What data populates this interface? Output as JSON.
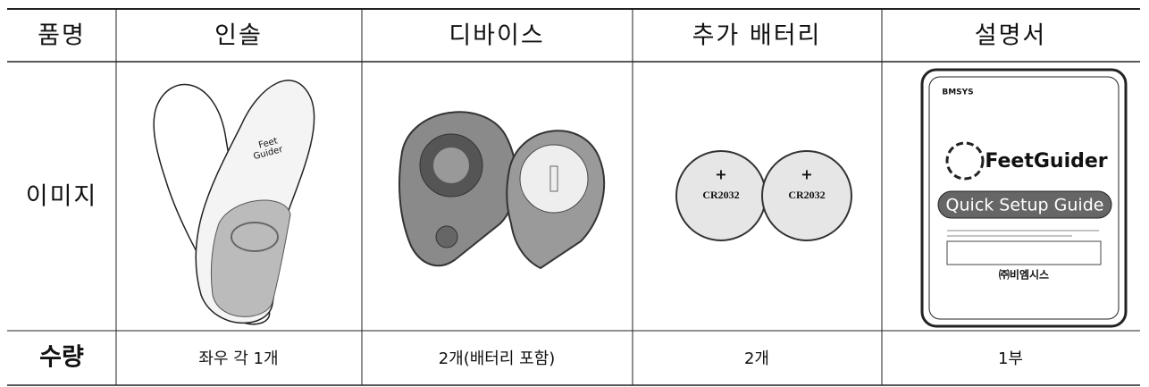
{
  "table": {
    "header": [
      "품명",
      "인솔",
      "디바이스",
      "추가 배터리",
      "설명서"
    ],
    "rows": [
      [
        "이미지"
      ],
      [
        "수량",
        "좌우 각 1개",
        "2개(배터리 포함)",
        "2개",
        "1부"
      ]
    ]
  },
  "images": {
    "insole": {
      "brand": [
        "Feet",
        "Guider"
      ]
    },
    "battery": {
      "labels": [
        "+",
        "CR2032",
        "+",
        "CR2032"
      ]
    },
    "manual": {
      "company": "BMSYS",
      "brand": "FeetGuider",
      "guide": "Quick Setup Guide",
      "maker": "㈜비엠시스"
    }
  }
}
